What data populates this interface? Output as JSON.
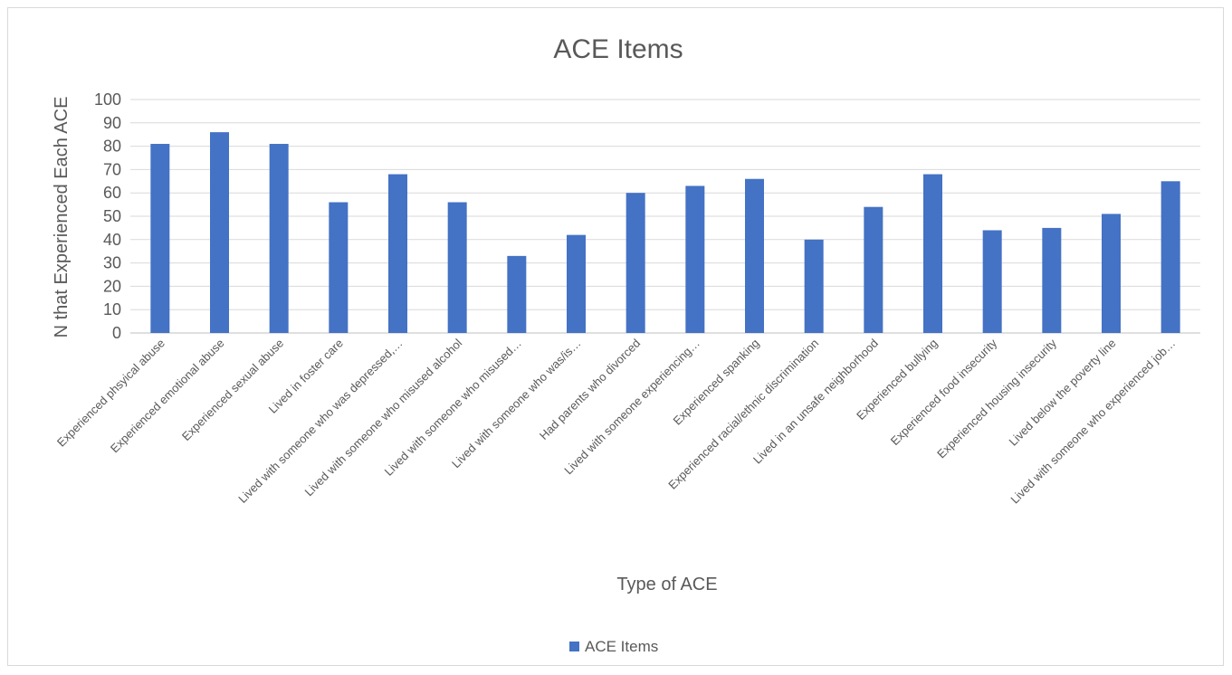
{
  "chart_data": {
    "type": "bar",
    "title": "ACE Items",
    "xlabel": "Type of ACE",
    "ylabel": "N  that Experienced Each ACE",
    "ylim": [
      0,
      100
    ],
    "yticks": [
      0,
      10,
      20,
      30,
      40,
      50,
      60,
      70,
      80,
      90,
      100
    ],
    "grid": true,
    "legend_position": "bottom",
    "bar_color": "#4472C4",
    "categories": [
      "Experienced phsyical abuse",
      "Experienced emotional abuse",
      "Experienced sexual abuse",
      "Lived in foster care",
      "Lived with someone who was depressed,…",
      "Lived with someone who misused alcohol",
      "Lived with someone who misused…",
      "Lived with someone who was/is…",
      "Had parents who divorced",
      "Lived with someone experiencing…",
      "Experienced spanking",
      "Experienced racial/ethnic discrimination",
      "Lived in an unsafe neighborhood",
      "Experienced bullying",
      "Experienced food insecurity",
      "Experienced housing insecurity",
      "Lived below the poverty line",
      "Lived with someone who experienced job…"
    ],
    "series": [
      {
        "name": "ACE Items",
        "values": [
          81,
          86,
          81,
          56,
          68,
          56,
          33,
          42,
          60,
          63,
          66,
          40,
          54,
          68,
          44,
          45,
          51,
          65
        ]
      }
    ]
  }
}
